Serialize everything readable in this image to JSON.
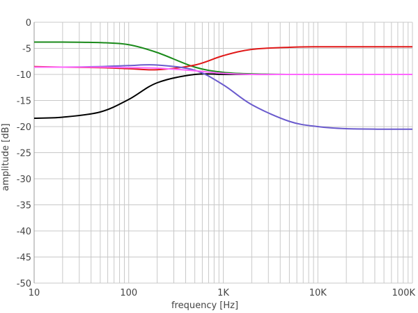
{
  "chart_data": {
    "type": "line",
    "xlabel": "frequency [Hz]",
    "ylabel": "amplitude [dB]",
    "xscale": "log",
    "xlim": [
      10,
      100000
    ],
    "ylim": [
      -50,
      0
    ],
    "grid": true,
    "legend": "none",
    "x_tick_labels": [
      "10",
      "100",
      "1K",
      "10K",
      "100K"
    ],
    "y_tick_labels": [
      "0",
      "-5",
      "-10",
      "-15",
      "-20",
      "-25",
      "-30",
      "-35",
      "-40",
      "-45",
      "-50"
    ],
    "x": [
      10,
      20,
      50,
      100,
      200,
      500,
      1000,
      2000,
      5000,
      10000,
      20000,
      50000,
      100000
    ],
    "series": [
      {
        "color": "#1a8a1a",
        "values": [
          -3.8,
          -3.8,
          -3.9,
          -4.3,
          -5.8,
          -8.6,
          -9.6,
          -9.9,
          -10.0,
          -10.0,
          -10.0,
          -10.0,
          -10.0
        ]
      },
      {
        "color": "#e01818",
        "values": [
          -8.5,
          -8.6,
          -8.7,
          -8.9,
          -9.1,
          -8.2,
          -6.4,
          -5.2,
          -4.8,
          -4.7,
          -4.7,
          -4.7,
          -4.7
        ]
      },
      {
        "color": "#000000",
        "values": [
          -18.4,
          -18.2,
          -17.2,
          -14.8,
          -11.6,
          -10.0,
          -10.0,
          -10.0,
          -10.0,
          -10.0,
          -10.0,
          -10.0,
          -10.0
        ]
      },
      {
        "color": "#6a5acd",
        "values": [
          -8.6,
          -8.6,
          -8.5,
          -8.3,
          -8.2,
          -9.2,
          -12.0,
          -15.8,
          -19.0,
          -20.0,
          -20.4,
          -20.5,
          -20.5
        ]
      },
      {
        "color": "#ff66ff",
        "values": [
          -8.6,
          -8.6,
          -8.6,
          -8.7,
          -8.8,
          -9.3,
          -9.8,
          -10.0,
          -10.0,
          -10.0,
          -10.0,
          -10.0,
          -10.0
        ]
      }
    ]
  }
}
